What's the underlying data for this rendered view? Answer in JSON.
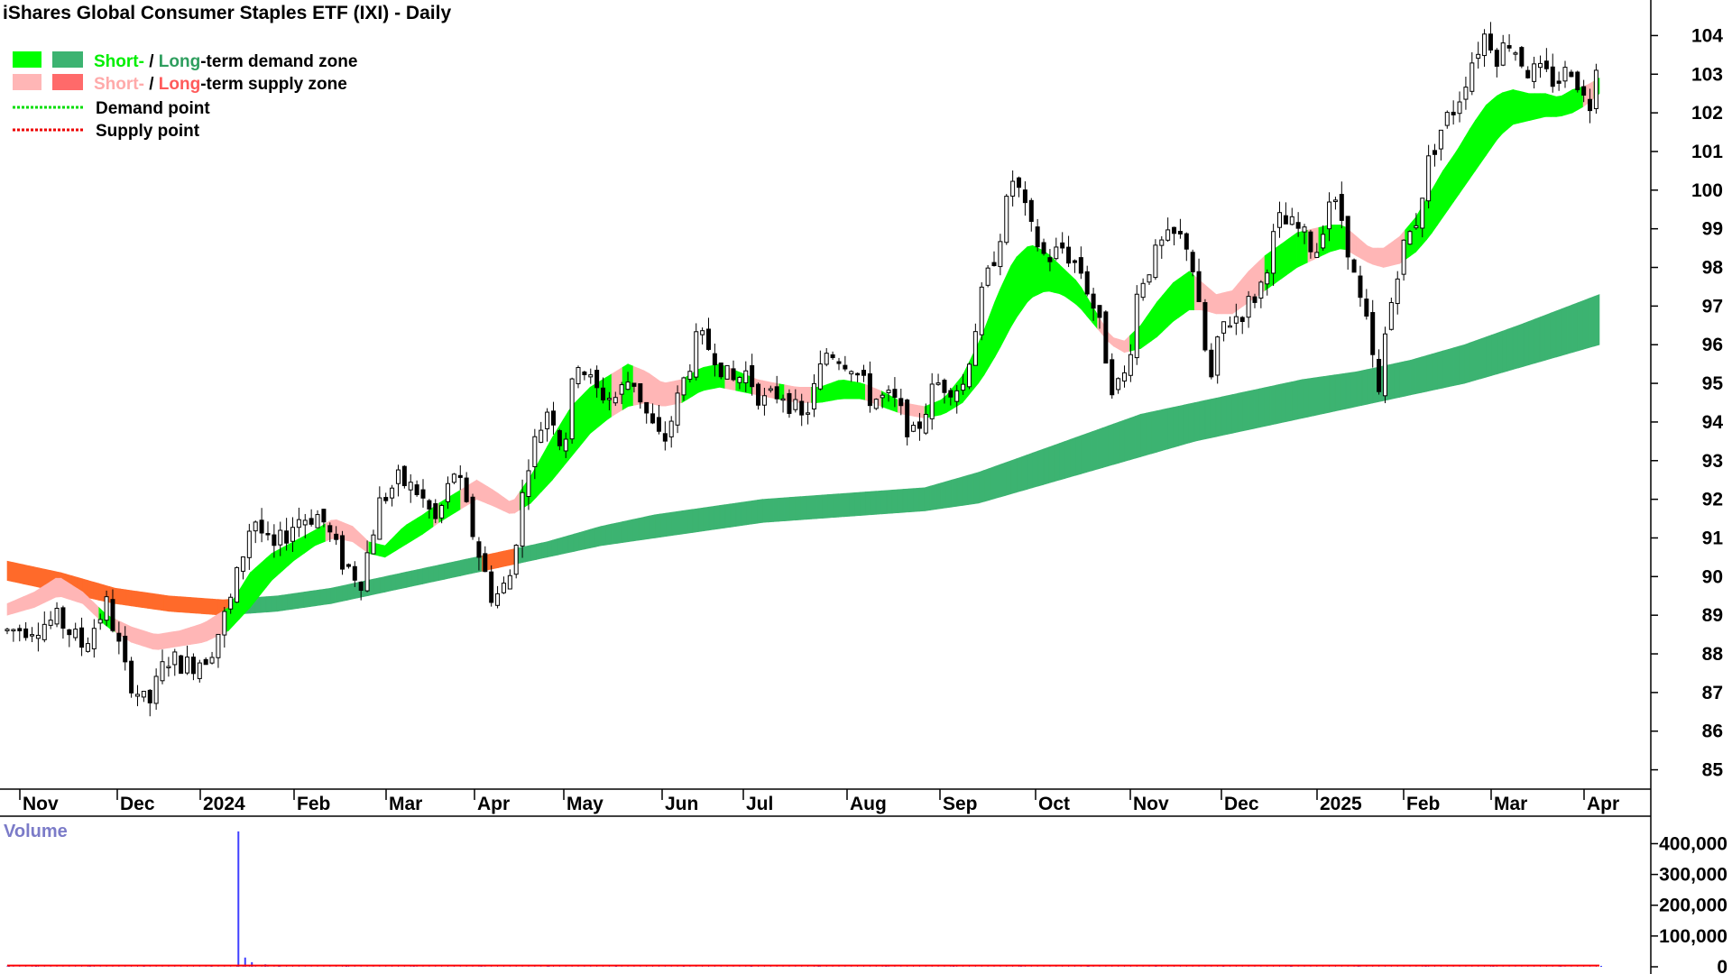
{
  "title": "iShares Global Consumer Staples ETF (IXI) - Daily",
  "legend": {
    "demand_short": "Short-",
    "demand_sep": " / ",
    "demand_long": "Long",
    "demand_rest": "-term demand zone",
    "supply_short": "Short-",
    "supply_sep": " / ",
    "supply_long": "Long",
    "supply_rest": "-term supply zone",
    "demand_point": "Demand point",
    "supply_point": "Supply point"
  },
  "volume_label": "Volume",
  "colors": {
    "short_demand": "#00ff00",
    "long_demand": "#3cb371",
    "short_supply": "#ffb6b6",
    "long_supply": "#ff6a2a",
    "volume_bar": "#4040ff",
    "volume_avg": "#ff0000",
    "axis": "#000000",
    "legend_green_text": "#00ee00",
    "legend_dark_green_text": "#2e9e5e",
    "legend_pink_text": "#ffaaaa",
    "legend_red_text": "#ff5a5a",
    "volume_text": "#7b7bc8"
  },
  "chart_data": {
    "type": "candlestick",
    "price_axis": {
      "ylim": [
        84.5,
        104.5
      ],
      "ticks": [
        "85",
        "86",
        "87",
        "88",
        "89",
        "90",
        "91",
        "92",
        "93",
        "94",
        "95",
        "96",
        "97",
        "98",
        "99",
        "100",
        "101",
        "102",
        "103",
        "104"
      ]
    },
    "x_labels": [
      "Nov",
      "Dec",
      "2024",
      "Feb",
      "Mar",
      "Apr",
      "May",
      "Jun",
      "Jul",
      "Aug",
      "Sep",
      "Oct",
      "Nov",
      "Dec",
      "2025",
      "Feb",
      "Mar",
      "Apr"
    ],
    "volume_axis": {
      "ylim": [
        0,
        460000
      ],
      "ticks": [
        "0",
        "100,000",
        "200,000",
        "300,000",
        "400,000"
      ]
    },
    "price_path": [
      [
        0,
        88.6
      ],
      [
        18,
        88.7
      ],
      [
        38,
        88.9
      ],
      [
        56,
        88.2
      ],
      [
        74,
        89.3
      ],
      [
        88,
        87.5
      ],
      [
        104,
        86.6
      ],
      [
        118,
        87.9
      ],
      [
        135,
        87.7
      ],
      [
        150,
        88.0
      ],
      [
        165,
        89.3
      ],
      [
        182,
        91.6
      ],
      [
        196,
        90.6
      ],
      [
        215,
        91.5
      ],
      [
        232,
        91.6
      ],
      [
        248,
        90.4
      ],
      [
        262,
        89.9
      ],
      [
        276,
        91.9
      ],
      [
        290,
        92.5
      ],
      [
        304,
        92.2
      ],
      [
        318,
        91.4
      ],
      [
        332,
        92.8
      ],
      [
        346,
        91.0
      ],
      [
        360,
        89.4
      ],
      [
        372,
        89.9
      ],
      [
        386,
        93.0
      ],
      [
        402,
        94.5
      ],
      [
        412,
        93.2
      ],
      [
        422,
        95.7
      ],
      [
        436,
        94.8
      ],
      [
        450,
        94.6
      ],
      [
        463,
        95.2
      ],
      [
        476,
        94.0
      ],
      [
        486,
        93.4
      ],
      [
        498,
        94.7
      ],
      [
        512,
        96.2
      ],
      [
        524,
        95.8
      ],
      [
        536,
        95.0
      ],
      [
        548,
        95.3
      ],
      [
        560,
        94.5
      ],
      [
        574,
        94.8
      ],
      [
        590,
        94.0
      ],
      [
        608,
        95.9
      ],
      [
        626,
        95.5
      ],
      [
        640,
        94.6
      ],
      [
        656,
        94.6
      ],
      [
        672,
        93.6
      ],
      [
        688,
        95.0
      ],
      [
        708,
        94.9
      ],
      [
        722,
        97.2
      ],
      [
        734,
        98.6
      ],
      [
        746,
        100.4
      ],
      [
        758,
        99.0
      ],
      [
        770,
        98.2
      ],
      [
        782,
        98.5
      ],
      [
        796,
        97.9
      ],
      [
        808,
        96.7
      ],
      [
        820,
        94.8
      ],
      [
        830,
        95.3
      ],
      [
        838,
        97.5
      ],
      [
        846,
        98.0
      ],
      [
        856,
        98.6
      ],
      [
        866,
        98.8
      ],
      [
        876,
        98.6
      ],
      [
        886,
        96.2
      ],
      [
        892,
        95.0
      ],
      [
        900,
        96.5
      ],
      [
        914,
        96.8
      ],
      [
        928,
        97.4
      ],
      [
        942,
        99.2
      ],
      [
        956,
        99.0
      ],
      [
        970,
        98.4
      ],
      [
        980,
        99.8
      ],
      [
        990,
        99.2
      ],
      [
        1000,
        97.4
      ],
      [
        1010,
        96.2
      ],
      [
        1016,
        94.4
      ],
      [
        1020,
        96.0
      ],
      [
        1032,
        98.3
      ],
      [
        1044,
        99.2
      ],
      [
        1054,
        100.8
      ],
      [
        1064,
        101.7
      ],
      [
        1074,
        102.2
      ],
      [
        1086,
        103.4
      ],
      [
        1096,
        104.1
      ],
      [
        1104,
        103.5
      ],
      [
        1114,
        103.9
      ],
      [
        1126,
        103.1
      ],
      [
        1138,
        103.0
      ],
      [
        1148,
        102.8
      ],
      [
        1160,
        103.2
      ],
      [
        1172,
        102.0
      ],
      [
        1180,
        104.0
      ]
    ],
    "short_upper": [
      [
        0,
        89.3
      ],
      [
        20,
        89.6
      ],
      [
        38,
        90.0
      ],
      [
        56,
        89.6
      ],
      [
        74,
        89.0
      ],
      [
        92,
        88.7
      ],
      [
        110,
        88.5
      ],
      [
        128,
        88.6
      ],
      [
        146,
        88.8
      ],
      [
        164,
        89.2
      ],
      [
        180,
        90.1
      ],
      [
        196,
        90.6
      ],
      [
        212,
        90.9
      ],
      [
        228,
        91.2
      ],
      [
        242,
        91.5
      ],
      [
        256,
        91.3
      ],
      [
        268,
        90.9
      ],
      [
        280,
        90.8
      ],
      [
        294,
        91.3
      ],
      [
        308,
        91.6
      ],
      [
        320,
        91.9
      ],
      [
        334,
        92.2
      ],
      [
        348,
        92.5
      ],
      [
        362,
        92.2
      ],
      [
        374,
        91.9
      ],
      [
        388,
        92.6
      ],
      [
        404,
        93.6
      ],
      [
        418,
        94.4
      ],
      [
        432,
        94.9
      ],
      [
        446,
        95.2
      ],
      [
        460,
        95.5
      ],
      [
        474,
        95.3
      ],
      [
        486,
        95.0
      ],
      [
        500,
        95.1
      ],
      [
        514,
        95.4
      ],
      [
        528,
        95.5
      ],
      [
        542,
        95.3
      ],
      [
        556,
        95.1
      ],
      [
        570,
        95.0
      ],
      [
        586,
        94.9
      ],
      [
        602,
        94.9
      ],
      [
        618,
        95.1
      ],
      [
        634,
        95.0
      ],
      [
        648,
        94.8
      ],
      [
        664,
        94.5
      ],
      [
        680,
        94.4
      ],
      [
        694,
        94.6
      ],
      [
        708,
        95.2
      ],
      [
        722,
        96.2
      ],
      [
        734,
        97.3
      ],
      [
        746,
        98.2
      ],
      [
        758,
        98.6
      ],
      [
        770,
        98.4
      ],
      [
        782,
        98.0
      ],
      [
        794,
        97.6
      ],
      [
        806,
        96.9
      ],
      [
        818,
        96.2
      ],
      [
        828,
        96.1
      ],
      [
        840,
        96.5
      ],
      [
        852,
        97.1
      ],
      [
        864,
        97.6
      ],
      [
        876,
        97.9
      ],
      [
        886,
        97.6
      ],
      [
        896,
        97.3
      ],
      [
        908,
        97.4
      ],
      [
        920,
        97.9
      ],
      [
        932,
        98.3
      ],
      [
        944,
        98.6
      ],
      [
        956,
        98.9
      ],
      [
        968,
        99.0
      ],
      [
        980,
        99.1
      ],
      [
        990,
        99.1
      ],
      [
        1000,
        98.8
      ],
      [
        1010,
        98.5
      ],
      [
        1020,
        98.5
      ],
      [
        1032,
        98.8
      ],
      [
        1044,
        99.3
      ],
      [
        1054,
        99.9
      ],
      [
        1064,
        100.5
      ],
      [
        1074,
        101.0
      ],
      [
        1086,
        101.7
      ],
      [
        1096,
        102.2
      ],
      [
        1106,
        102.5
      ],
      [
        1116,
        102.6
      ],
      [
        1128,
        102.5
      ],
      [
        1140,
        102.5
      ],
      [
        1150,
        102.4
      ],
      [
        1160,
        102.6
      ],
      [
        1170,
        102.7
      ],
      [
        1180,
        102.9
      ]
    ],
    "short_lower": [
      [
        0,
        89.0
      ],
      [
        20,
        89.2
      ],
      [
        38,
        89.5
      ],
      [
        56,
        89.3
      ],
      [
        74,
        88.7
      ],
      [
        92,
        88.3
      ],
      [
        110,
        88.1
      ],
      [
        128,
        88.2
      ],
      [
        146,
        88.3
      ],
      [
        164,
        88.6
      ],
      [
        180,
        89.2
      ],
      [
        196,
        89.9
      ],
      [
        212,
        90.4
      ],
      [
        228,
        90.8
      ],
      [
        242,
        91.0
      ],
      [
        256,
        90.9
      ],
      [
        268,
        90.6
      ],
      [
        280,
        90.5
      ],
      [
        294,
        90.8
      ],
      [
        308,
        91.1
      ],
      [
        320,
        91.4
      ],
      [
        334,
        91.7
      ],
      [
        348,
        92.0
      ],
      [
        362,
        91.8
      ],
      [
        374,
        91.6
      ],
      [
        388,
        91.9
      ],
      [
        404,
        92.5
      ],
      [
        418,
        93.1
      ],
      [
        432,
        93.7
      ],
      [
        446,
        94.1
      ],
      [
        460,
        94.4
      ],
      [
        474,
        94.5
      ],
      [
        486,
        94.4
      ],
      [
        500,
        94.5
      ],
      [
        514,
        94.8
      ],
      [
        528,
        94.9
      ],
      [
        542,
        94.8
      ],
      [
        556,
        94.7
      ],
      [
        570,
        94.6
      ],
      [
        586,
        94.5
      ],
      [
        602,
        94.5
      ],
      [
        618,
        94.6
      ],
      [
        634,
        94.6
      ],
      [
        648,
        94.4
      ],
      [
        664,
        94.2
      ],
      [
        680,
        94.1
      ],
      [
        694,
        94.2
      ],
      [
        708,
        94.5
      ],
      [
        722,
        95.1
      ],
      [
        734,
        95.8
      ],
      [
        746,
        96.6
      ],
      [
        758,
        97.2
      ],
      [
        770,
        97.4
      ],
      [
        782,
        97.3
      ],
      [
        794,
        97.0
      ],
      [
        806,
        96.5
      ],
      [
        818,
        96.0
      ],
      [
        828,
        95.8
      ],
      [
        840,
        95.9
      ],
      [
        852,
        96.2
      ],
      [
        864,
        96.6
      ],
      [
        876,
        96.9
      ],
      [
        886,
        96.9
      ],
      [
        896,
        96.8
      ],
      [
        908,
        96.8
      ],
      [
        920,
        97.1
      ],
      [
        932,
        97.4
      ],
      [
        944,
        97.7
      ],
      [
        956,
        98.0
      ],
      [
        968,
        98.2
      ],
      [
        980,
        98.4
      ],
      [
        990,
        98.5
      ],
      [
        1000,
        98.3
      ],
      [
        1010,
        98.1
      ],
      [
        1020,
        98.0
      ],
      [
        1032,
        98.1
      ],
      [
        1044,
        98.4
      ],
      [
        1054,
        98.8
      ],
      [
        1064,
        99.3
      ],
      [
        1074,
        99.8
      ],
      [
        1086,
        100.4
      ],
      [
        1096,
        100.9
      ],
      [
        1106,
        101.4
      ],
      [
        1116,
        101.7
      ],
      [
        1128,
        101.8
      ],
      [
        1140,
        101.9
      ],
      [
        1150,
        101.9
      ],
      [
        1160,
        102.0
      ],
      [
        1170,
        102.2
      ],
      [
        1180,
        102.5
      ]
    ],
    "long_upper": [
      [
        0,
        90.4
      ],
      [
        40,
        90.1
      ],
      [
        80,
        89.7
      ],
      [
        120,
        89.5
      ],
      [
        160,
        89.4
      ],
      [
        200,
        89.5
      ],
      [
        240,
        89.7
      ],
      [
        280,
        90.0
      ],
      [
        320,
        90.3
      ],
      [
        360,
        90.6
      ],
      [
        400,
        90.9
      ],
      [
        440,
        91.3
      ],
      [
        480,
        91.6
      ],
      [
        520,
        91.8
      ],
      [
        560,
        92.0
      ],
      [
        600,
        92.1
      ],
      [
        640,
        92.2
      ],
      [
        680,
        92.3
      ],
      [
        720,
        92.7
      ],
      [
        760,
        93.2
      ],
      [
        800,
        93.7
      ],
      [
        840,
        94.2
      ],
      [
        880,
        94.5
      ],
      [
        920,
        94.8
      ],
      [
        960,
        95.1
      ],
      [
        1000,
        95.3
      ],
      [
        1040,
        95.6
      ],
      [
        1080,
        96.0
      ],
      [
        1120,
        96.5
      ],
      [
        1150,
        96.9
      ],
      [
        1180,
        97.3
      ]
    ],
    "long_lower": [
      [
        0,
        89.9
      ],
      [
        40,
        89.6
      ],
      [
        80,
        89.3
      ],
      [
        120,
        89.1
      ],
      [
        160,
        89.0
      ],
      [
        200,
        89.1
      ],
      [
        240,
        89.3
      ],
      [
        280,
        89.6
      ],
      [
        320,
        89.9
      ],
      [
        360,
        90.2
      ],
      [
        400,
        90.5
      ],
      [
        440,
        90.8
      ],
      [
        480,
        91.0
      ],
      [
        520,
        91.2
      ],
      [
        560,
        91.4
      ],
      [
        600,
        91.5
      ],
      [
        640,
        91.6
      ],
      [
        680,
        91.7
      ],
      [
        720,
        91.9
      ],
      [
        760,
        92.3
      ],
      [
        800,
        92.7
      ],
      [
        840,
        93.1
      ],
      [
        880,
        93.5
      ],
      [
        920,
        93.8
      ],
      [
        960,
        94.1
      ],
      [
        1000,
        94.4
      ],
      [
        1040,
        94.7
      ],
      [
        1080,
        95.0
      ],
      [
        1120,
        95.4
      ],
      [
        1150,
        95.7
      ],
      [
        1180,
        96.0
      ]
    ],
    "volume": [
      [
        0,
        2000
      ],
      [
        20,
        3000
      ],
      [
        60,
        4000
      ],
      [
        100,
        3000
      ],
      [
        150,
        6000
      ],
      [
        170,
        440000
      ],
      [
        175,
        30000
      ],
      [
        180,
        15000
      ],
      [
        190,
        8000
      ],
      [
        200,
        5000
      ],
      [
        250,
        4000
      ],
      [
        300,
        3000
      ],
      [
        350,
        5000
      ],
      [
        400,
        3000
      ],
      [
        450,
        2000
      ],
      [
        500,
        3000
      ],
      [
        550,
        2500
      ],
      [
        600,
        3000
      ],
      [
        650,
        2000
      ],
      [
        700,
        4000
      ],
      [
        750,
        3000
      ],
      [
        800,
        3500
      ],
      [
        850,
        2500
      ],
      [
        900,
        3000
      ],
      [
        950,
        2000
      ],
      [
        1000,
        2500
      ],
      [
        1050,
        3000
      ],
      [
        1100,
        2000
      ],
      [
        1150,
        2500
      ],
      [
        1180,
        3000
      ]
    ]
  }
}
